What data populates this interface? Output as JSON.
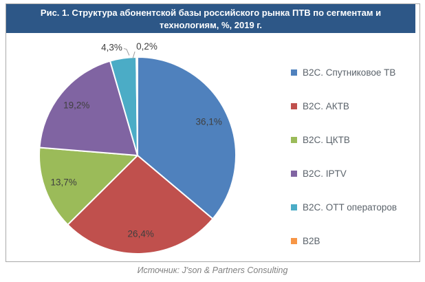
{
  "figure": {
    "title_line1": "Рис. 1. Структура абонентской  базы российского рынка  ПТВ по сегментам и",
    "title_line2": "технологиям, %, 2019  г.",
    "source": "Источник: J'son & Partners Consulting"
  },
  "colors": {
    "title_bar_bg": "#2d5787",
    "title_text": "#ffffff",
    "border": "#a9a9a9",
    "label_text": "#3f3f3f",
    "legend_text": "#5b636b",
    "source_text": "#808080"
  },
  "chart_data": {
    "type": "pie",
    "title": "Рис. 1. Структура абонентской базы российского рынка ПТВ по сегментам и технологиям, %, 2019 г.",
    "legend_position": "right",
    "start_angle_deg": 0,
    "direction": "clockwise",
    "slices": [
      {
        "label": "B2C. Спутниковое ТВ",
        "value": 36.1,
        "display": "36,1%",
        "color": "#4F81BD",
        "label_pos": "inside"
      },
      {
        "label": "B2C. АКТВ",
        "value": 26.4,
        "display": "26,4%",
        "color": "#C0504D",
        "label_pos": "inside"
      },
      {
        "label": "B2C. ЦКТВ",
        "value": 13.7,
        "display": "13,7%",
        "color": "#9BBB59",
        "label_pos": "inside"
      },
      {
        "label": "B2C. IPTV",
        "value": 19.2,
        "display": "19,2%",
        "color": "#8064A2",
        "label_pos": "inside"
      },
      {
        "label": "B2C. OTT операторов",
        "value": 4.3,
        "display": "4,3%",
        "color": "#4BACC6",
        "label_pos": "outside-left"
      },
      {
        "label": "B2B",
        "value": 0.2,
        "display": "0,2%",
        "color": "#F79646",
        "label_pos": "outside-right"
      }
    ]
  }
}
